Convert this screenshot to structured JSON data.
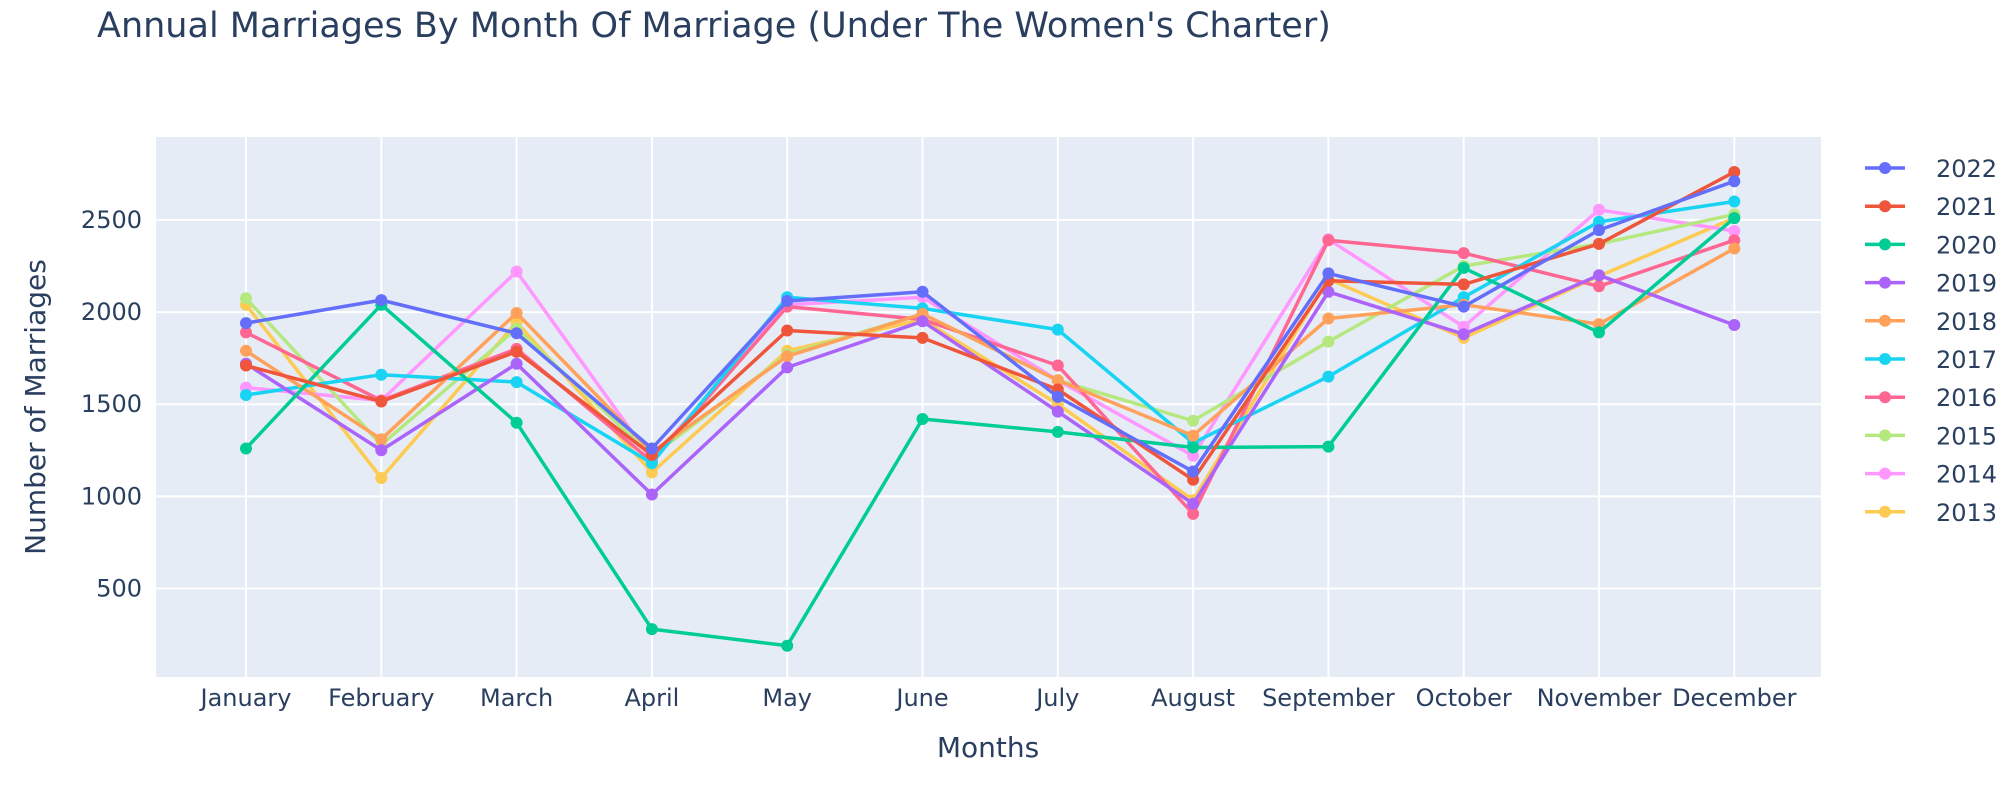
{
  "chart_data": {
    "type": "line",
    "title": "Annual Marriages By Month Of Marriage (Under The Women's Charter)",
    "xlabel": "Months",
    "ylabel": "Number of Marriages",
    "categories": [
      "January",
      "February",
      "March",
      "April",
      "May",
      "June",
      "July",
      "August",
      "September",
      "October",
      "November",
      "December"
    ],
    "ylim": [
      20,
      2950
    ],
    "yticks": [
      500,
      1000,
      1500,
      2000,
      2500
    ],
    "grid": true,
    "legend_position": "right",
    "series": [
      {
        "name": "2022",
        "color": "#636efa",
        "values": [
          1940,
          2065,
          1885,
          1260,
          2060,
          2110,
          1540,
          1135,
          2210,
          2030,
          2445,
          2710
        ]
      },
      {
        "name": "2021",
        "color": "#ef553b",
        "values": [
          1710,
          1515,
          1785,
          1225,
          1900,
          1860,
          1580,
          1090,
          2170,
          2150,
          2370,
          2760
        ]
      },
      {
        "name": "2020",
        "color": "#00cc96",
        "values": [
          1260,
          2040,
          1400,
          280,
          190,
          1420,
          1350,
          1265,
          1270,
          2240,
          1890,
          2510
        ]
      },
      {
        "name": "2019",
        "color": "#ab63fa",
        "values": [
          1720,
          1250,
          1720,
          1010,
          1700,
          1950,
          1460,
          960,
          2110,
          1880,
          2200,
          1930
        ]
      },
      {
        "name": "2018",
        "color": "#ffa15a",
        "values": [
          1790,
          1310,
          1995,
          1240,
          1760,
          1990,
          1630,
          1330,
          1965,
          2040,
          1935,
          2345
        ]
      },
      {
        "name": "2017",
        "color": "#19d3f3",
        "values": [
          1550,
          1660,
          1620,
          1180,
          2080,
          2020,
          1905,
          1290,
          1650,
          2080,
          2490,
          2600
        ]
      },
      {
        "name": "2016",
        "color": "#ff6692",
        "values": [
          1890,
          1520,
          1800,
          1190,
          2030,
          1960,
          1710,
          905,
          2390,
          2320,
          2140,
          2390
        ]
      },
      {
        "name": "2015",
        "color": "#b6e880",
        "values": [
          2075,
          1280,
          1910,
          1220,
          1770,
          1990,
          1630,
          1410,
          1840,
          2250,
          2370,
          2530
        ]
      },
      {
        "name": "2014",
        "color": "#ff97ff",
        "values": [
          1590,
          1520,
          2220,
          1200,
          2040,
          2080,
          1630,
          1220,
          2395,
          1920,
          2555,
          2440
        ]
      },
      {
        "name": "2013",
        "color": "#fecb52",
        "values": [
          2040,
          1100,
          1945,
          1130,
          1790,
          1960,
          1500,
          980,
          2180,
          1860,
          2195,
          2510
        ]
      }
    ]
  }
}
